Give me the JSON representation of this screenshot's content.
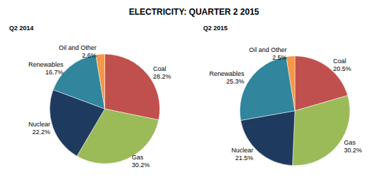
{
  "title": "ELECTRICITY: QUARTER 2 2015",
  "chart_data": [
    {
      "type": "pie",
      "title": "Q2 2014",
      "categories": [
        "Coal",
        "Gas",
        "Nuclear",
        "Renewables",
        "Oil and Other"
      ],
      "values": [
        28.2,
        30.2,
        22.2,
        16.7,
        2.6
      ],
      "value_labels": [
        "28.2%",
        "30.2%",
        "22.2%",
        "16.7%",
        "2.6%"
      ],
      "colors": [
        "#c0504d",
        "#9bbb59",
        "#1f3a5f",
        "#31859c",
        "#f79646"
      ],
      "data_labels": true
    },
    {
      "type": "pie",
      "title": "Q2 2015",
      "categories": [
        "Coal",
        "Gas",
        "Nuclear",
        "Renewables",
        "Oil and Other"
      ],
      "values": [
        20.5,
        30.2,
        21.5,
        25.3,
        2.5
      ],
      "value_labels": [
        "20.5%",
        "30.2%",
        "21.5%",
        "25.3%",
        "2.5%"
      ],
      "colors": [
        "#c0504d",
        "#9bbb59",
        "#1f3a5f",
        "#31859c",
        "#f79646"
      ],
      "data_labels": true
    }
  ]
}
